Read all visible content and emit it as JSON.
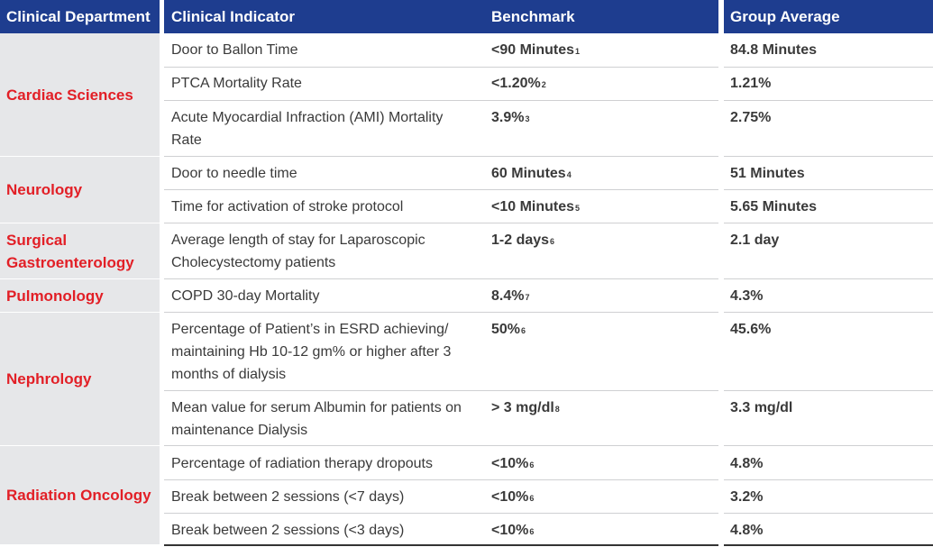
{
  "header": {
    "department": "Clinical Department",
    "indicator": "Clinical Indicator",
    "benchmark": "Benchmark",
    "average": "Group Average"
  },
  "departments": [
    "Cardiac Sciences",
    "Neurology",
    "Surgical Gastroenterology",
    "Pulmonology",
    "Nephrology",
    "Radiation Oncology"
  ],
  "rows": [
    {
      "indicator": "Door to Ballon Time",
      "benchmark": "<90 Minutes",
      "sup": "1",
      "average": "84.8 Minutes"
    },
    {
      "indicator": "PTCA Mortality Rate",
      "benchmark": "<1.20%",
      "sup": "2",
      "average": "1.21%"
    },
    {
      "indicator": "Acute Myocardial Infraction (AMI) Mortality Rate",
      "benchmark": "3.9%",
      "sup": "3",
      "average": "2.75%"
    },
    {
      "indicator": "Door to needle time",
      "benchmark": "60 Minutes",
      "sup": "4",
      "average": "51 Minutes"
    },
    {
      "indicator": "Time for activation of stroke protocol",
      "benchmark": "<10 Minutes",
      "sup": "5",
      "average": "5.65 Minutes"
    },
    {
      "indicator": "Average length of stay for Laparoscopic Cholecystectomy patients",
      "benchmark": "1-2 days",
      "sup": "6",
      "average": "2.1 day"
    },
    {
      "indicator": "COPD 30-day Mortality",
      "benchmark": "8.4%",
      "sup": "7",
      "average": "4.3%"
    },
    {
      "indicator": "Percentage of Patient’s in ESRD achieving/ maintaining Hb 10-12 gm% or higher after 3 months of dialysis",
      "benchmark": "50%",
      "sup": "6",
      "average": "45.6%"
    },
    {
      "indicator": "Mean value for serum Albumin for patients on maintenance Dialysis",
      "benchmark": "> 3 mg/dl",
      "sup": "8",
      "average": "3.3 mg/dl"
    },
    {
      "indicator": "Percentage of radiation therapy dropouts",
      "benchmark": "<10%",
      "sup": "6",
      "average": "4.8%"
    },
    {
      "indicator": "Break between 2 sessions (<7 days)",
      "benchmark": "<10%",
      "sup": "6",
      "average": "3.2%"
    },
    {
      "indicator": "Break between 2 sessions (<3 days)",
      "benchmark": "<10%",
      "sup": "6",
      "average": "4.8%"
    }
  ]
}
